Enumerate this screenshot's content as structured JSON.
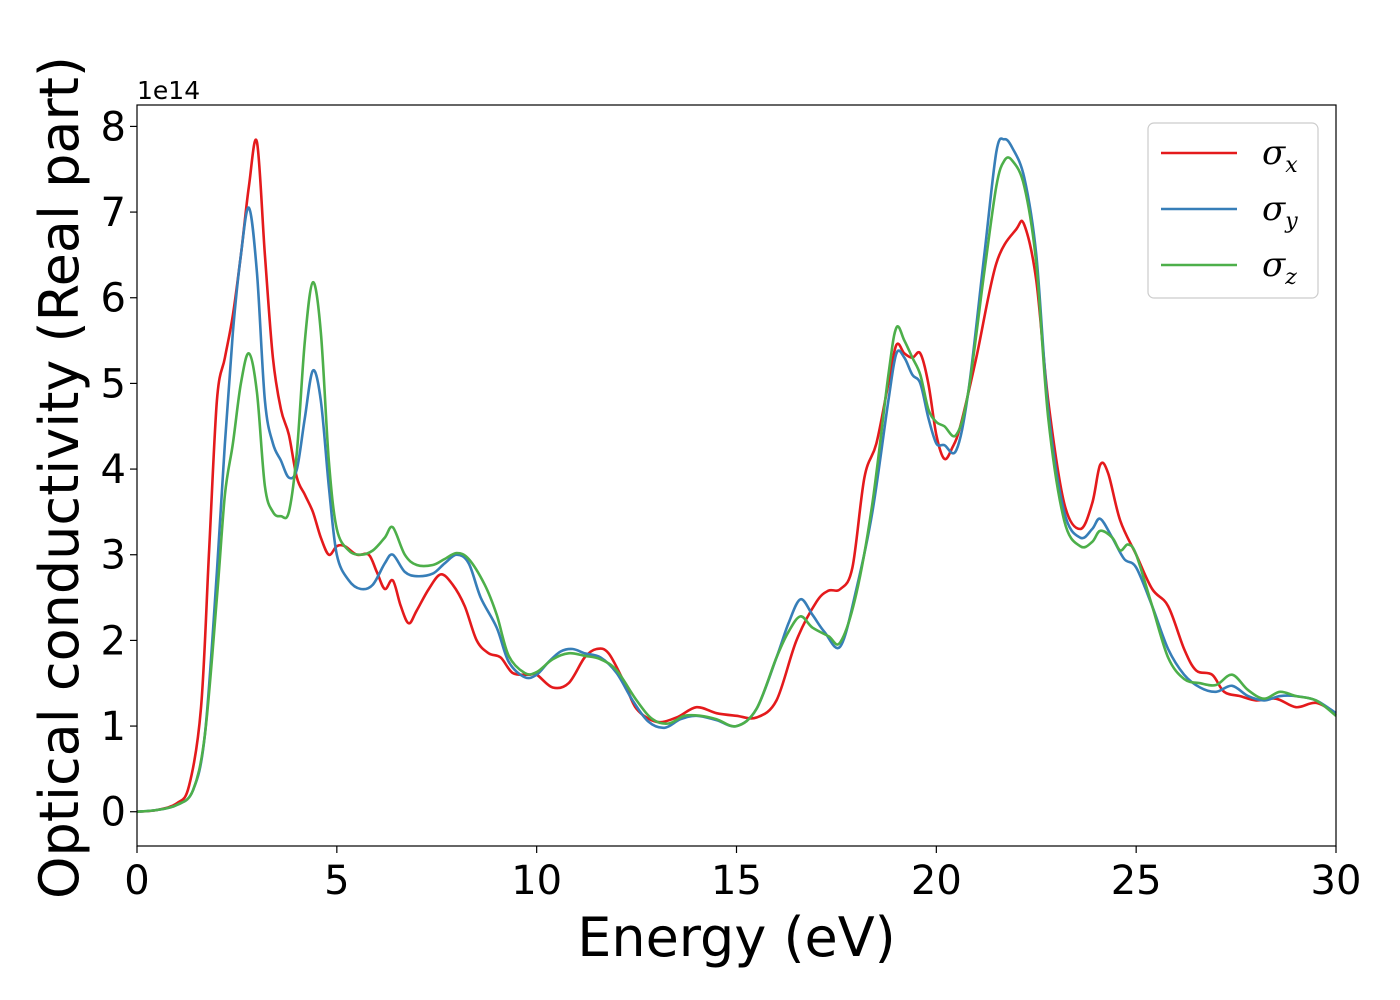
{
  "chart_data": {
    "type": "line",
    "title": "",
    "xlabel": "Energy (eV)",
    "ylabel": "Optical conductivity (Real part)",
    "y_offset_label": "1e14",
    "xlim": [
      0,
      30
    ],
    "ylim": [
      -0.4,
      8.25
    ],
    "xticks": [
      0,
      5,
      10,
      15,
      20,
      25,
      30
    ],
    "yticks": [
      0,
      1,
      2,
      3,
      4,
      5,
      6,
      7,
      8
    ],
    "grid": false,
    "legend_position": "top-right",
    "series": [
      {
        "name": "σx",
        "label_main": "σ",
        "label_sub": "x",
        "color": "#e41a1c",
        "points": [
          [
            0,
            0
          ],
          [
            0.5,
            0.02
          ],
          [
            1,
            0.1
          ],
          [
            1.3,
            0.3
          ],
          [
            1.6,
            1.2
          ],
          [
            1.8,
            3.0
          ],
          [
            2.0,
            4.8
          ],
          [
            2.2,
            5.3
          ],
          [
            2.4,
            5.8
          ],
          [
            2.6,
            6.5
          ],
          [
            2.8,
            7.3
          ],
          [
            3.0,
            7.82
          ],
          [
            3.2,
            6.5
          ],
          [
            3.4,
            5.3
          ],
          [
            3.6,
            4.7
          ],
          [
            3.8,
            4.4
          ],
          [
            4.0,
            3.9
          ],
          [
            4.2,
            3.7
          ],
          [
            4.4,
            3.5
          ],
          [
            4.6,
            3.2
          ],
          [
            4.8,
            3.0
          ],
          [
            5.0,
            3.1
          ],
          [
            5.2,
            3.1
          ],
          [
            5.5,
            3.0
          ],
          [
            5.8,
            3.0
          ],
          [
            6.0,
            2.8
          ],
          [
            6.2,
            2.6
          ],
          [
            6.4,
            2.7
          ],
          [
            6.6,
            2.4
          ],
          [
            6.8,
            2.2
          ],
          [
            7.0,
            2.35
          ],
          [
            7.3,
            2.6
          ],
          [
            7.6,
            2.77
          ],
          [
            7.9,
            2.65
          ],
          [
            8.2,
            2.4
          ],
          [
            8.5,
            2.0
          ],
          [
            8.8,
            1.85
          ],
          [
            9.1,
            1.8
          ],
          [
            9.4,
            1.62
          ],
          [
            9.8,
            1.6
          ],
          [
            10.0,
            1.6
          ],
          [
            10.4,
            1.45
          ],
          [
            10.8,
            1.5
          ],
          [
            11.2,
            1.8
          ],
          [
            11.5,
            1.9
          ],
          [
            11.8,
            1.85
          ],
          [
            12.2,
            1.5
          ],
          [
            12.5,
            1.2
          ],
          [
            13.0,
            1.05
          ],
          [
            13.5,
            1.1
          ],
          [
            14.0,
            1.22
          ],
          [
            14.5,
            1.15
          ],
          [
            15.0,
            1.12
          ],
          [
            15.5,
            1.1
          ],
          [
            16.0,
            1.3
          ],
          [
            16.5,
            2.0
          ],
          [
            17.0,
            2.45
          ],
          [
            17.3,
            2.58
          ],
          [
            17.6,
            2.6
          ],
          [
            17.9,
            2.85
          ],
          [
            18.2,
            3.9
          ],
          [
            18.5,
            4.3
          ],
          [
            18.8,
            5.0
          ],
          [
            19.0,
            5.45
          ],
          [
            19.2,
            5.35
          ],
          [
            19.4,
            5.3
          ],
          [
            19.6,
            5.35
          ],
          [
            19.8,
            5.0
          ],
          [
            20.0,
            4.4
          ],
          [
            20.2,
            4.12
          ],
          [
            20.4,
            4.25
          ],
          [
            20.6,
            4.5
          ],
          [
            21.0,
            5.3
          ],
          [
            21.5,
            6.4
          ],
          [
            22.0,
            6.8
          ],
          [
            22.2,
            6.85
          ],
          [
            22.5,
            6.2
          ],
          [
            22.8,
            4.8
          ],
          [
            23.2,
            3.6
          ],
          [
            23.6,
            3.3
          ],
          [
            23.9,
            3.6
          ],
          [
            24.1,
            4.05
          ],
          [
            24.3,
            3.95
          ],
          [
            24.6,
            3.4
          ],
          [
            25.0,
            3.0
          ],
          [
            25.4,
            2.6
          ],
          [
            25.8,
            2.4
          ],
          [
            26.2,
            1.9
          ],
          [
            26.5,
            1.65
          ],
          [
            26.9,
            1.6
          ],
          [
            27.2,
            1.4
          ],
          [
            27.6,
            1.35
          ],
          [
            28.0,
            1.3
          ],
          [
            28.5,
            1.32
          ],
          [
            29.0,
            1.22
          ],
          [
            29.5,
            1.27
          ],
          [
            30.0,
            1.15
          ]
        ]
      },
      {
        "name": "σy",
        "label_main": "σ",
        "label_sub": "y",
        "color": "#377eb8",
        "points": [
          [
            0,
            0
          ],
          [
            0.5,
            0.02
          ],
          [
            1,
            0.08
          ],
          [
            1.4,
            0.25
          ],
          [
            1.7,
            0.9
          ],
          [
            2.0,
            2.8
          ],
          [
            2.2,
            4.3
          ],
          [
            2.4,
            5.6
          ],
          [
            2.6,
            6.5
          ],
          [
            2.8,
            7.05
          ],
          [
            3.0,
            6.3
          ],
          [
            3.2,
            4.8
          ],
          [
            3.4,
            4.3
          ],
          [
            3.6,
            4.1
          ],
          [
            3.8,
            3.9
          ],
          [
            4.0,
            4.0
          ],
          [
            4.2,
            4.6
          ],
          [
            4.4,
            5.15
          ],
          [
            4.6,
            4.8
          ],
          [
            4.8,
            3.8
          ],
          [
            5.0,
            3.0
          ],
          [
            5.3,
            2.7
          ],
          [
            5.6,
            2.6
          ],
          [
            5.9,
            2.65
          ],
          [
            6.2,
            2.9
          ],
          [
            6.4,
            3.0
          ],
          [
            6.7,
            2.8
          ],
          [
            7.0,
            2.75
          ],
          [
            7.4,
            2.78
          ],
          [
            7.7,
            2.9
          ],
          [
            8.0,
            3.0
          ],
          [
            8.3,
            2.9
          ],
          [
            8.6,
            2.5
          ],
          [
            9.0,
            2.15
          ],
          [
            9.3,
            1.75
          ],
          [
            9.7,
            1.57
          ],
          [
            10.0,
            1.6
          ],
          [
            10.3,
            1.75
          ],
          [
            10.6,
            1.87
          ],
          [
            10.9,
            1.9
          ],
          [
            11.2,
            1.85
          ],
          [
            11.6,
            1.8
          ],
          [
            12.0,
            1.62
          ],
          [
            12.4,
            1.3
          ],
          [
            12.8,
            1.05
          ],
          [
            13.2,
            0.98
          ],
          [
            13.6,
            1.08
          ],
          [
            14.0,
            1.12
          ],
          [
            14.5,
            1.07
          ],
          [
            15.0,
            1.0
          ],
          [
            15.5,
            1.2
          ],
          [
            16.0,
            1.8
          ],
          [
            16.3,
            2.2
          ],
          [
            16.6,
            2.48
          ],
          [
            16.9,
            2.3
          ],
          [
            17.2,
            2.1
          ],
          [
            17.6,
            1.93
          ],
          [
            18.0,
            2.6
          ],
          [
            18.4,
            3.5
          ],
          [
            18.8,
            4.8
          ],
          [
            19.0,
            5.35
          ],
          [
            19.2,
            5.3
          ],
          [
            19.4,
            5.1
          ],
          [
            19.6,
            5.0
          ],
          [
            19.8,
            4.6
          ],
          [
            20.0,
            4.3
          ],
          [
            20.2,
            4.28
          ],
          [
            20.5,
            4.22
          ],
          [
            20.8,
            4.9
          ],
          [
            21.2,
            6.5
          ],
          [
            21.5,
            7.7
          ],
          [
            21.7,
            7.85
          ],
          [
            21.9,
            7.75
          ],
          [
            22.2,
            7.4
          ],
          [
            22.5,
            6.5
          ],
          [
            22.8,
            4.7
          ],
          [
            23.2,
            3.5
          ],
          [
            23.6,
            3.2
          ],
          [
            23.9,
            3.3
          ],
          [
            24.1,
            3.42
          ],
          [
            24.4,
            3.2
          ],
          [
            24.7,
            2.95
          ],
          [
            25.0,
            2.85
          ],
          [
            25.4,
            2.4
          ],
          [
            25.8,
            1.9
          ],
          [
            26.2,
            1.6
          ],
          [
            26.6,
            1.45
          ],
          [
            27.0,
            1.4
          ],
          [
            27.4,
            1.47
          ],
          [
            27.8,
            1.35
          ],
          [
            28.2,
            1.3
          ],
          [
            28.6,
            1.35
          ],
          [
            29.0,
            1.35
          ],
          [
            29.5,
            1.3
          ],
          [
            30.0,
            1.15
          ]
        ]
      },
      {
        "name": "σz",
        "label_main": "σ",
        "label_sub": "z",
        "color": "#4daf4a",
        "points": [
          [
            0,
            0
          ],
          [
            0.5,
            0.02
          ],
          [
            1,
            0.08
          ],
          [
            1.4,
            0.25
          ],
          [
            1.7,
            0.9
          ],
          [
            2.0,
            2.5
          ],
          [
            2.2,
            3.7
          ],
          [
            2.4,
            4.3
          ],
          [
            2.6,
            5.0
          ],
          [
            2.8,
            5.35
          ],
          [
            3.0,
            4.9
          ],
          [
            3.2,
            3.8
          ],
          [
            3.4,
            3.5
          ],
          [
            3.6,
            3.45
          ],
          [
            3.8,
            3.5
          ],
          [
            4.0,
            4.2
          ],
          [
            4.2,
            5.5
          ],
          [
            4.4,
            6.18
          ],
          [
            4.6,
            5.6
          ],
          [
            4.8,
            4.1
          ],
          [
            5.0,
            3.3
          ],
          [
            5.3,
            3.05
          ],
          [
            5.6,
            3.0
          ],
          [
            5.9,
            3.05
          ],
          [
            6.2,
            3.2
          ],
          [
            6.4,
            3.32
          ],
          [
            6.7,
            3.0
          ],
          [
            7.0,
            2.88
          ],
          [
            7.4,
            2.88
          ],
          [
            7.7,
            2.95
          ],
          [
            8.0,
            3.02
          ],
          [
            8.3,
            2.95
          ],
          [
            8.7,
            2.65
          ],
          [
            9.0,
            2.3
          ],
          [
            9.3,
            1.82
          ],
          [
            9.7,
            1.62
          ],
          [
            10.0,
            1.63
          ],
          [
            10.4,
            1.78
          ],
          [
            10.8,
            1.85
          ],
          [
            11.2,
            1.82
          ],
          [
            11.6,
            1.78
          ],
          [
            12.0,
            1.65
          ],
          [
            12.5,
            1.3
          ],
          [
            12.9,
            1.08
          ],
          [
            13.3,
            1.03
          ],
          [
            13.7,
            1.12
          ],
          [
            14.1,
            1.12
          ],
          [
            14.5,
            1.08
          ],
          [
            15.0,
            1.0
          ],
          [
            15.5,
            1.2
          ],
          [
            16.0,
            1.8
          ],
          [
            16.3,
            2.1
          ],
          [
            16.6,
            2.28
          ],
          [
            16.9,
            2.15
          ],
          [
            17.3,
            2.05
          ],
          [
            17.6,
            1.98
          ],
          [
            18.0,
            2.55
          ],
          [
            18.4,
            3.6
          ],
          [
            18.8,
            5.1
          ],
          [
            19.0,
            5.65
          ],
          [
            19.2,
            5.5
          ],
          [
            19.4,
            5.3
          ],
          [
            19.6,
            5.1
          ],
          [
            19.8,
            4.7
          ],
          [
            20.0,
            4.55
          ],
          [
            20.2,
            4.5
          ],
          [
            20.5,
            4.4
          ],
          [
            20.8,
            4.9
          ],
          [
            21.2,
            6.3
          ],
          [
            21.5,
            7.3
          ],
          [
            21.7,
            7.6
          ],
          [
            21.9,
            7.6
          ],
          [
            22.2,
            7.3
          ],
          [
            22.5,
            6.4
          ],
          [
            22.8,
            4.6
          ],
          [
            23.2,
            3.4
          ],
          [
            23.6,
            3.1
          ],
          [
            23.9,
            3.15
          ],
          [
            24.1,
            3.28
          ],
          [
            24.4,
            3.2
          ],
          [
            24.6,
            3.05
          ],
          [
            24.8,
            3.12
          ],
          [
            25.0,
            3.0
          ],
          [
            25.4,
            2.4
          ],
          [
            25.8,
            1.8
          ],
          [
            26.2,
            1.55
          ],
          [
            26.6,
            1.5
          ],
          [
            27.0,
            1.48
          ],
          [
            27.4,
            1.6
          ],
          [
            27.8,
            1.42
          ],
          [
            28.2,
            1.32
          ],
          [
            28.6,
            1.4
          ],
          [
            29.0,
            1.35
          ],
          [
            29.5,
            1.3
          ],
          [
            30.0,
            1.12
          ]
        ]
      }
    ]
  }
}
